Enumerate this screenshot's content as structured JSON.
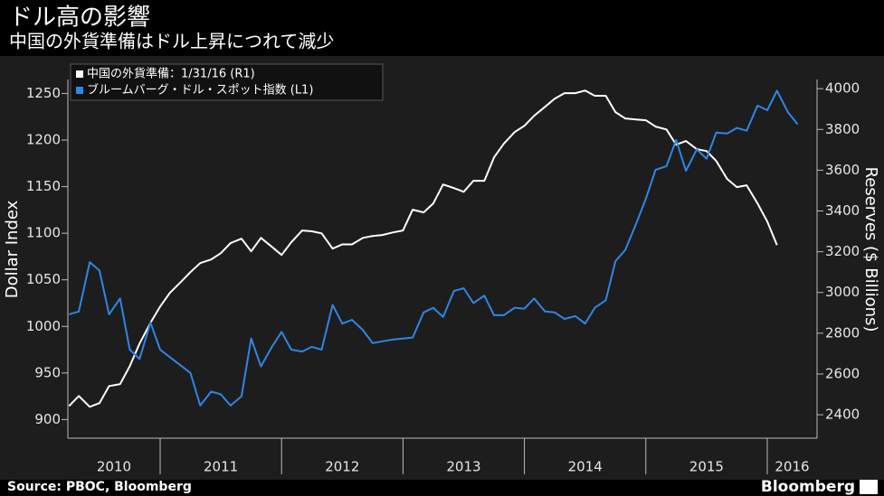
{
  "chart_data": {
    "type": "line",
    "title": "ドル高の影響",
    "subtitle": "中国の外貨準備はドル上昇につれて減少",
    "y_label": "Dollar Index",
    "y2_label": "Reserves ($ Billions)",
    "x": [
      2010.25,
      2010.33,
      2010.42,
      2010.5,
      2010.58,
      2010.67,
      2010.75,
      2010.83,
      2010.92,
      2011.0,
      2011.08,
      2011.17,
      2011.25,
      2011.33,
      2011.42,
      2011.5,
      2011.58,
      2011.67,
      2011.75,
      2011.83,
      2011.92,
      2012.0,
      2012.08,
      2012.17,
      2012.25,
      2012.33,
      2012.42,
      2012.5,
      2012.58,
      2012.67,
      2012.75,
      2012.83,
      2012.92,
      2013.0,
      2013.08,
      2013.17,
      2013.25,
      2013.33,
      2013.42,
      2013.5,
      2013.58,
      2013.67,
      2013.75,
      2013.83,
      2013.92,
      2014.0,
      2014.08,
      2014.17,
      2014.25,
      2014.33,
      2014.42,
      2014.5,
      2014.58,
      2014.67,
      2014.75,
      2014.83,
      2014.92,
      2015.0,
      2015.08,
      2015.17,
      2015.25,
      2015.33,
      2015.42,
      2015.5,
      2015.58,
      2015.67,
      2015.75,
      2015.83,
      2015.92,
      2016.0,
      2016.08,
      2016.17,
      2016.25
    ],
    "xlim": [
      2010.24,
      2016.41
    ],
    "xticks": [
      2011,
      2012,
      2013,
      2014,
      2015,
      2016
    ],
    "x_labels": [
      "2010",
      "2011",
      "2012",
      "2013",
      "2014",
      "2015",
      "2016"
    ],
    "ylim": [
      880,
      1265
    ],
    "yticks": [
      900,
      950,
      1000,
      1050,
      1100,
      1150,
      1200,
      1250
    ],
    "y2lim": [
      2285,
      4045
    ],
    "y2ticks": [
      2400,
      2600,
      2800,
      3000,
      3200,
      3400,
      3600,
      3800,
      4000
    ],
    "legend": "top-left",
    "series": [
      {
        "name": "中国の外貨準備：1/31/16 (R1)",
        "color": "#ffffff",
        "axis": "y2",
        "values": [
          2443,
          2492,
          2439,
          2457,
          2541,
          2550,
          2638,
          2749,
          2851,
          2931,
          2998,
          3051,
          3100,
          3144,
          3162,
          3193,
          3242,
          3264,
          3202,
          3268,
          3224,
          3184,
          3246,
          3304,
          3300,
          3290,
          3215,
          3236,
          3236,
          3268,
          3277,
          3282,
          3295,
          3304,
          3406,
          3393,
          3437,
          3530,
          3512,
          3494,
          3548,
          3548,
          3663,
          3730,
          3787,
          3818,
          3867,
          3911,
          3951,
          3978,
          3978,
          3991,
          3965,
          3965,
          3885,
          3854,
          3849,
          3845,
          3814,
          3800,
          3725,
          3743,
          3703,
          3694,
          3645,
          3557,
          3517,
          3526,
          3437,
          3348,
          3233,
          null,
          null
        ]
      },
      {
        "name": "ブルームバーグ・ドル・スポット指数 (L1)",
        "color": "#2f86e6",
        "axis": "y",
        "values": [
          1013,
          1016,
          1069,
          1060,
          1013,
          1030,
          975,
          965,
          1004,
          975,
          967,
          958,
          950,
          915,
          930,
          927,
          915,
          925,
          987,
          957,
          978,
          994,
          975,
          973,
          978,
          975,
          1023,
          1003,
          1007,
          996,
          982,
          984,
          986,
          987,
          988,
          1015,
          1020,
          1010,
          1038,
          1041,
          1025,
          1033,
          1012,
          1012,
          1020,
          1019,
          1030,
          1016,
          1015,
          1008,
          1011,
          1003,
          1020,
          1028,
          1070,
          1082,
          1110,
          1137,
          1168,
          1172,
          1200,
          1167,
          1190,
          1180,
          1208,
          1207,
          1213,
          1210,
          1237,
          1232,
          1253,
          1230,
          1217
        ]
      }
    ]
  },
  "footer": {
    "source": "Source: PBOC, Bloomberg",
    "logo": "Bloomberg"
  }
}
